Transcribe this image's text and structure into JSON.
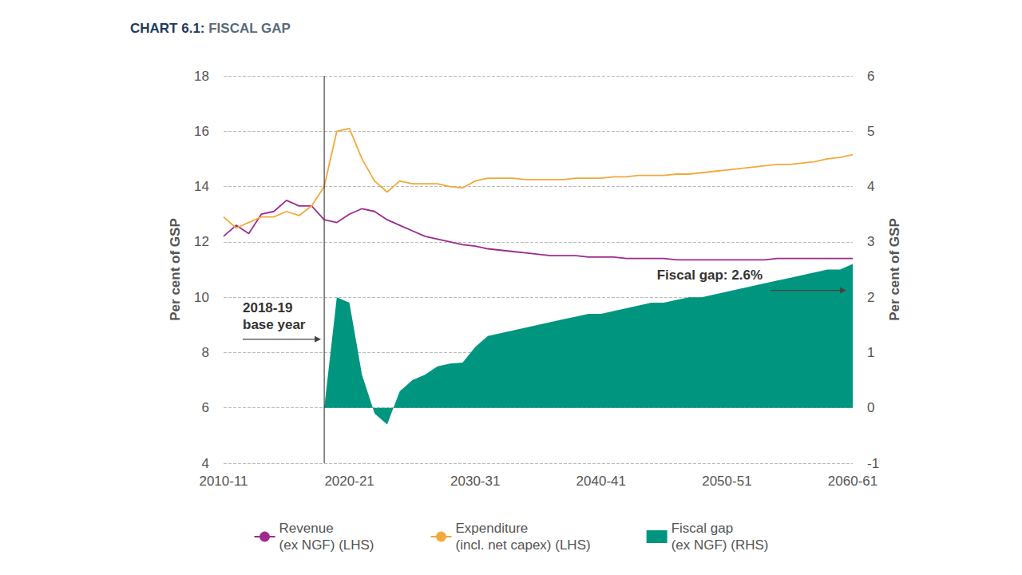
{
  "chart_data": {
    "type": "line",
    "title": "CHART 6.1: FISCAL GAP",
    "categories": [
      "2010-11",
      null,
      null,
      null,
      null,
      null,
      null,
      null,
      null,
      null,
      "2020-21",
      null,
      null,
      null,
      null,
      null,
      null,
      null,
      null,
      null,
      "2030-31",
      null,
      null,
      null,
      null,
      null,
      null,
      null,
      null,
      null,
      "2040-41",
      null,
      null,
      null,
      null,
      null,
      null,
      null,
      null,
      null,
      "2050-51",
      null,
      null,
      null,
      null,
      null,
      null,
      null,
      null,
      null,
      "2060-61"
    ],
    "y_label": "Per cent of GSP",
    "y2_label": "Per cent of GSP",
    "ylim": [
      4,
      18
    ],
    "yticks": [
      4,
      6,
      8,
      10,
      12,
      14,
      16,
      18
    ],
    "y2lim": [
      -1,
      6
    ],
    "y2ticks": [
      -1,
      0,
      1,
      2,
      3,
      4,
      5,
      6
    ],
    "grid": true,
    "legend": "bottom",
    "series": [
      {
        "name": "Revenue\n(ex NGF) (LHS)",
        "color": "#9e2a8e",
        "type": "line",
        "values": [
          12.2,
          12.6,
          12.3,
          13.0,
          13.1,
          13.5,
          13.3,
          13.3,
          12.8,
          12.7,
          13.0,
          13.2,
          13.1,
          12.8,
          12.6,
          12.4,
          12.2,
          12.1,
          12.0,
          11.9,
          11.85,
          11.75,
          11.7,
          11.65,
          11.6,
          11.55,
          11.5,
          11.5,
          11.5,
          11.45,
          11.45,
          11.45,
          11.4,
          11.4,
          11.4,
          11.4,
          11.35,
          11.35,
          11.35,
          11.35,
          11.35,
          11.35,
          11.35,
          11.35,
          11.4,
          11.4,
          11.4,
          11.4,
          11.4,
          11.4,
          11.4
        ]
      },
      {
        "name": "Expenditure\n(incl. net capex) (LHS)",
        "color": "#f2a93b",
        "type": "line",
        "values": [
          12.9,
          12.5,
          12.7,
          12.9,
          12.9,
          13.1,
          12.95,
          13.3,
          14.0,
          16.0,
          16.1,
          15.0,
          14.2,
          13.8,
          14.2,
          14.1,
          14.1,
          14.1,
          14.0,
          13.95,
          14.2,
          14.3,
          14.3,
          14.3,
          14.25,
          14.25,
          14.25,
          14.25,
          14.3,
          14.3,
          14.3,
          14.35,
          14.35,
          14.4,
          14.4,
          14.4,
          14.45,
          14.45,
          14.5,
          14.55,
          14.6,
          14.65,
          14.7,
          14.75,
          14.8,
          14.8,
          14.85,
          14.9,
          15.0,
          15.05,
          15.15
        ]
      },
      {
        "name": "Fiscal gap\n(ex NGF) (RHS)",
        "color": "#00957f",
        "type": "area",
        "axis": "y2",
        "values": [
          null,
          null,
          null,
          null,
          null,
          null,
          null,
          null,
          0,
          2.0,
          1.9,
          0.6,
          -0.1,
          -0.3,
          0.3,
          0.5,
          0.6,
          0.75,
          0.8,
          0.82,
          1.1,
          1.3,
          1.35,
          1.4,
          1.45,
          1.5,
          1.55,
          1.6,
          1.65,
          1.7,
          1.7,
          1.75,
          1.8,
          1.85,
          1.9,
          1.9,
          1.95,
          2.0,
          2.0,
          2.05,
          2.1,
          2.15,
          2.2,
          2.25,
          2.3,
          2.35,
          2.4,
          2.45,
          2.5,
          2.5,
          2.6
        ]
      }
    ],
    "annotations": [
      {
        "text": "2018-19\nbase year",
        "x": 8
      },
      {
        "text": "Fiscal gap: 2.6%",
        "x": 50,
        "y": 2.6,
        "axis": "y2"
      }
    ]
  }
}
